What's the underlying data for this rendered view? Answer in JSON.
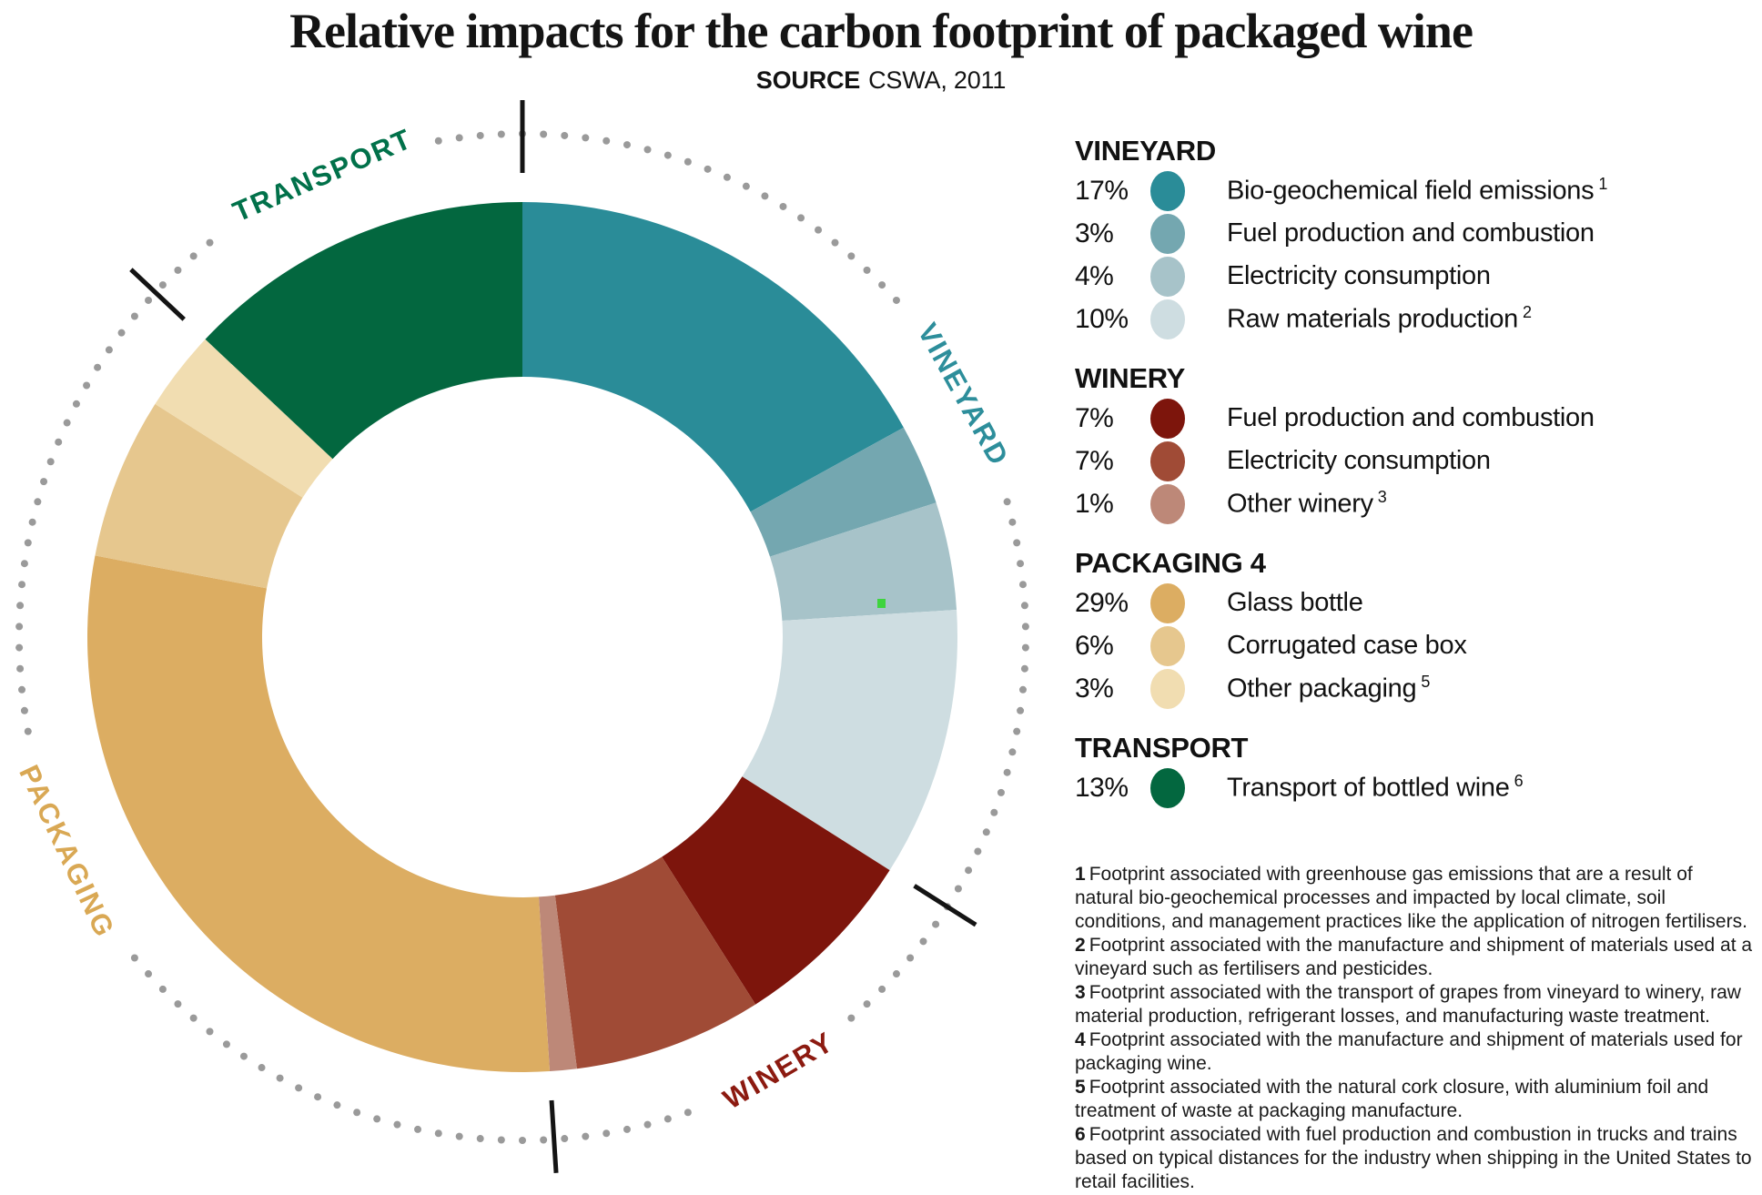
{
  "title": "Relative impacts for the carbon footprint of packaged wine",
  "source": {
    "label": "SOURCE",
    "value": "CSWA, 2011"
  },
  "chart_data": {
    "type": "pie",
    "subtype": "donut",
    "title": "Relative impacts for the carbon footprint of packaged wine",
    "source": "CSWA, 2011",
    "unit": "%",
    "total": 100,
    "start_angle_deg_from_top": 0,
    "direction": "clockwise",
    "ring_style": "dotted guide ring with black ticks at category boundaries",
    "categories": [
      "VINEYARD",
      "WINERY",
      "PACKAGING",
      "TRANSPORT"
    ],
    "category_totals": [
      34,
      15,
      38,
      13
    ],
    "groups": [
      {
        "name": "VINEYARD",
        "header": "VINEYARD",
        "arc_label": "VINEYARD",
        "label_color": "#2d8e9b",
        "items": [
          {
            "value": 17,
            "percent_label": "17%",
            "label": "Bio-geochemical field emissions",
            "footnote_ref": "1",
            "color": "#2a8c98"
          },
          {
            "value": 3,
            "percent_label": "3%",
            "label": "Fuel production and combustion",
            "footnote_ref": "",
            "color": "#74a7b0"
          },
          {
            "value": 4,
            "percent_label": "4%",
            "label": "Electricity consumption",
            "footnote_ref": "",
            "color": "#a7c3c9"
          },
          {
            "value": 10,
            "percent_label": "10%",
            "label": "Raw materials production",
            "footnote_ref": "2",
            "color": "#cedde1"
          }
        ]
      },
      {
        "name": "WINERY",
        "header": "WINERY",
        "arc_label": "WINERY",
        "label_color": "#8c1a10",
        "items": [
          {
            "value": 7,
            "percent_label": "7%",
            "label": "Fuel production and combustion",
            "footnote_ref": "",
            "color": "#7d150c"
          },
          {
            "value": 7,
            "percent_label": "7%",
            "label": "Electricity consumption",
            "footnote_ref": "",
            "color": "#a04b36"
          },
          {
            "value": 1,
            "percent_label": "1%",
            "label": "Other winery",
            "footnote_ref": "3",
            "color": "#bd8878"
          }
        ]
      },
      {
        "name": "PACKAGING",
        "header": "PACKAGING 4",
        "arc_label": "PACKAGING",
        "label_color": "#d9a854",
        "items": [
          {
            "value": 29,
            "percent_label": "29%",
            "label": "Glass bottle",
            "footnote_ref": "",
            "color": "#dcad62"
          },
          {
            "value": 6,
            "percent_label": "6%",
            "label": "Corrugated case box",
            "footnote_ref": "",
            "color": "#e6c78e"
          },
          {
            "value": 3,
            "percent_label": "3%",
            "label": "Other packaging",
            "footnote_ref": "5",
            "color": "#f1ddb1"
          }
        ]
      },
      {
        "name": "TRANSPORT",
        "header": "TRANSPORT",
        "arc_label": "TRANSPORT",
        "label_color": "#01714a",
        "items": [
          {
            "value": 13,
            "percent_label": "13%",
            "label": "Transport of bottled wine",
            "footnote_ref": "6",
            "color": "#03673f"
          }
        ]
      }
    ]
  },
  "footnotes": [
    {
      "num": "1",
      "text": "Footprint associated with greenhouse gas emissions that are a result of natural bio-geochemical processes and impacted by local climate, soil conditions, and management practices like the application of nitrogen fertilisers."
    },
    {
      "num": "2",
      "text": "Footprint associated with the manufacture and shipment of materials used at a vineyard such as fertilisers and pesticides."
    },
    {
      "num": "3",
      "text": "Footprint associated with the transport of grapes from vineyard to winery, raw material production, refrigerant losses, and manufacturing waste treatment."
    },
    {
      "num": "4",
      "text": "Footprint associated with the manufacture and shipment of materials used for packaging wine."
    },
    {
      "num": "5",
      "text": "Footprint associated with the natural cork closure, with aluminium foil and treatment of waste at packaging manufacture."
    },
    {
      "num": "6",
      "text": "Footprint associated with fuel production and combustion in trucks and trains based on typical distances for the industry when shipping in the United States to retail facilities."
    }
  ]
}
